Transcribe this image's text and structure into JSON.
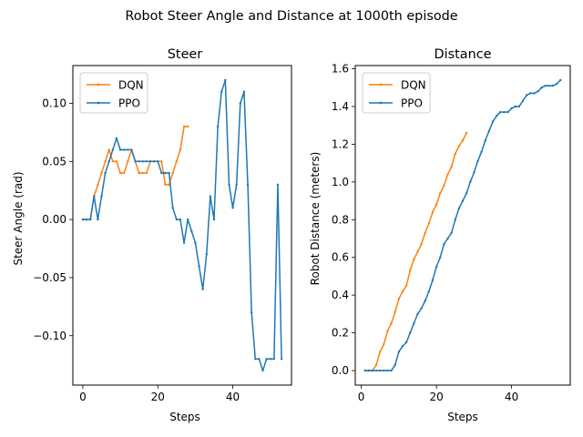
{
  "figure": {
    "suptitle": "Robot Steer Angle and Distance at 1000th episode"
  },
  "colors": {
    "dqn": "#ff7f0e",
    "ppo": "#1f77b4",
    "axis": "#000000",
    "background": "#ffffff"
  },
  "chart_data": [
    {
      "type": "line",
      "title": "Steer",
      "xlabel": "Steps",
      "ylabel": "Steer Angle (rad)",
      "xlim": [
        -2.65,
        55.65
      ],
      "ylim": [
        -0.1425,
        0.1325
      ],
      "xticks": [
        0,
        20,
        40
      ],
      "xtick_labels": [
        "0",
        "20",
        "40"
      ],
      "yticks": [
        -0.1,
        -0.05,
        0.0,
        0.05,
        0.1
      ],
      "ytick_labels": [
        "−0.10",
        "−0.05",
        "0.00",
        "0.05",
        "0.10"
      ],
      "legend_position": "upper-left",
      "grid": false,
      "series": [
        {
          "name": "DQN",
          "color_key": "dqn",
          "x": [
            0,
            1,
            2,
            3,
            4,
            5,
            6,
            7,
            8,
            9,
            10,
            11,
            12,
            13,
            14,
            15,
            16,
            17,
            18,
            19,
            20,
            21,
            22,
            23,
            24,
            25,
            26,
            27,
            28
          ],
          "y": [
            0,
            0,
            0,
            0.02,
            0.03,
            0.04,
            0.05,
            0.06,
            0.05,
            0.05,
            0.04,
            0.04,
            0.05,
            0.06,
            0.05,
            0.04,
            0.04,
            0.04,
            0.05,
            0.05,
            0.05,
            0.05,
            0.03,
            0.03,
            0.04,
            0.05,
            0.06,
            0.08,
            0.08
          ]
        },
        {
          "name": "PPO",
          "color_key": "ppo",
          "x": [
            0,
            1,
            2,
            3,
            4,
            5,
            6,
            7,
            8,
            9,
            10,
            11,
            12,
            13,
            14,
            15,
            16,
            17,
            18,
            19,
            20,
            21,
            22,
            23,
            24,
            25,
            26,
            27,
            28,
            29,
            30,
            31,
            32,
            33,
            34,
            35,
            36,
            37,
            38,
            39,
            40,
            41,
            42,
            43,
            44,
            45,
            46,
            47,
            48,
            49,
            50,
            51,
            52,
            53
          ],
          "y": [
            0,
            0,
            0,
            0.02,
            0,
            0.02,
            0.04,
            0.05,
            0.06,
            0.07,
            0.06,
            0.06,
            0.06,
            0.06,
            0.05,
            0.05,
            0.05,
            0.05,
            0.05,
            0.05,
            0.05,
            0.04,
            0.04,
            0.04,
            0.01,
            0,
            0,
            -0.02,
            0,
            -0.01,
            -0.02,
            -0.04,
            -0.06,
            -0.03,
            0.02,
            0,
            0.08,
            0.11,
            0.12,
            0.03,
            0.01,
            0.03,
            0.1,
            0.11,
            0.03,
            -0.08,
            -0.12,
            -0.12,
            -0.13,
            -0.12,
            -0.12,
            -0.12,
            0.03,
            -0.12
          ]
        }
      ]
    },
    {
      "type": "line",
      "title": "Distance",
      "xlabel": "Steps",
      "ylabel": "Robot Distance (meters)",
      "xlim": [
        -1.6,
        55.6
      ],
      "ylim": [
        -0.077,
        1.617
      ],
      "xticks": [
        0,
        20,
        40
      ],
      "xtick_labels": [
        "0",
        "20",
        "40"
      ],
      "yticks": [
        0.0,
        0.2,
        0.4,
        0.6,
        0.8,
        1.0,
        1.2,
        1.4,
        1.6
      ],
      "ytick_labels": [
        "0.0",
        "0.2",
        "0.4",
        "0.6",
        "0.8",
        "1.0",
        "1.2",
        "1.4",
        "1.6"
      ],
      "legend_position": "upper-left",
      "grid": false,
      "series": [
        {
          "name": "DQN",
          "color_key": "dqn",
          "x": [
            1,
            2,
            3,
            4,
            5,
            6,
            7,
            8,
            9,
            10,
            11,
            12,
            13,
            14,
            15,
            16,
            17,
            18,
            19,
            20,
            21,
            22,
            23,
            24,
            25,
            26,
            27,
            28
          ],
          "y": [
            0,
            0,
            0,
            0.03,
            0.1,
            0.14,
            0.21,
            0.25,
            0.31,
            0.38,
            0.42,
            0.45,
            0.53,
            0.59,
            0.63,
            0.67,
            0.73,
            0.78,
            0.84,
            0.88,
            0.94,
            0.98,
            1.04,
            1.08,
            1.15,
            1.19,
            1.22,
            1.26
          ]
        },
        {
          "name": "PPO",
          "color_key": "ppo",
          "x": [
            1,
            2,
            3,
            4,
            5,
            6,
            7,
            8,
            9,
            10,
            11,
            12,
            13,
            14,
            15,
            16,
            17,
            18,
            19,
            20,
            21,
            22,
            23,
            24,
            25,
            26,
            27,
            28,
            29,
            30,
            31,
            32,
            33,
            34,
            35,
            36,
            37,
            38,
            39,
            40,
            41,
            42,
            43,
            44,
            45,
            46,
            47,
            48,
            49,
            50,
            51,
            52,
            53
          ],
          "y": [
            0,
            0,
            0,
            0,
            0,
            0,
            0,
            0,
            0.03,
            0.1,
            0.13,
            0.15,
            0.2,
            0.25,
            0.3,
            0.33,
            0.37,
            0.42,
            0.48,
            0.55,
            0.6,
            0.67,
            0.7,
            0.73,
            0.8,
            0.86,
            0.9,
            0.94,
            1.0,
            1.05,
            1.11,
            1.16,
            1.22,
            1.27,
            1.32,
            1.35,
            1.37,
            1.37,
            1.37,
            1.39,
            1.4,
            1.4,
            1.43,
            1.46,
            1.47,
            1.47,
            1.48,
            1.5,
            1.51,
            1.51,
            1.51,
            1.52,
            1.54
          ]
        }
      ]
    }
  ]
}
